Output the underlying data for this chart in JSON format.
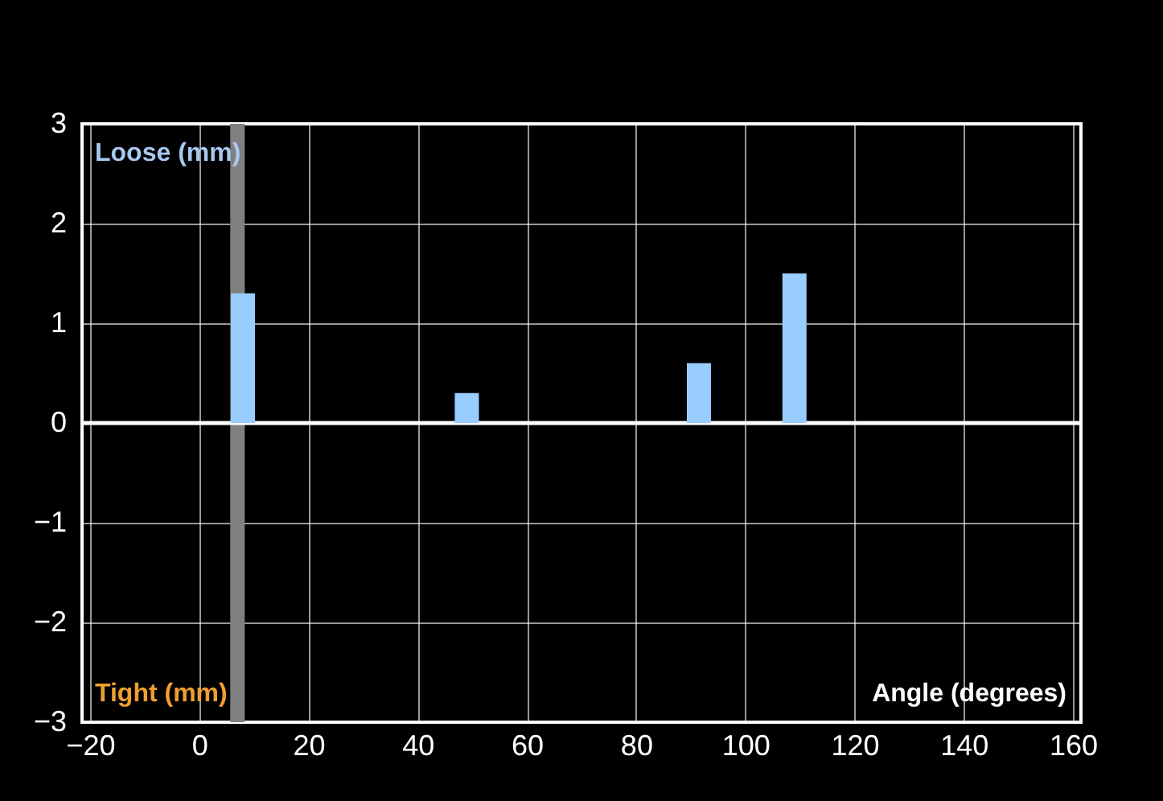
{
  "chart_data": {
    "type": "bar",
    "x": [
      8,
      49,
      91.5,
      109
    ],
    "series": [
      {
        "color": "#99ccff",
        "values": [
          1.3,
          0.3,
          0.6,
          1.5
        ]
      }
    ],
    "xlabel": "Angle (degrees)",
    "annotations": [
      "Loose (mm)",
      "Tight (mm)"
    ],
    "xlim": [
      -20,
      160
    ],
    "xticks": [
      -20,
      0,
      20,
      40,
      60,
      80,
      100,
      120,
      140,
      160
    ],
    "ylim": [
      -3,
      3
    ],
    "yticks": [
      -3,
      -2,
      -1,
      0,
      1,
      2,
      3
    ],
    "ref_lines": [
      {
        "axis": "x",
        "value": 7,
        "color": "#808080"
      },
      {
        "axis": "y",
        "value": 0,
        "color": "#ffffff"
      }
    ],
    "grid": true
  }
}
